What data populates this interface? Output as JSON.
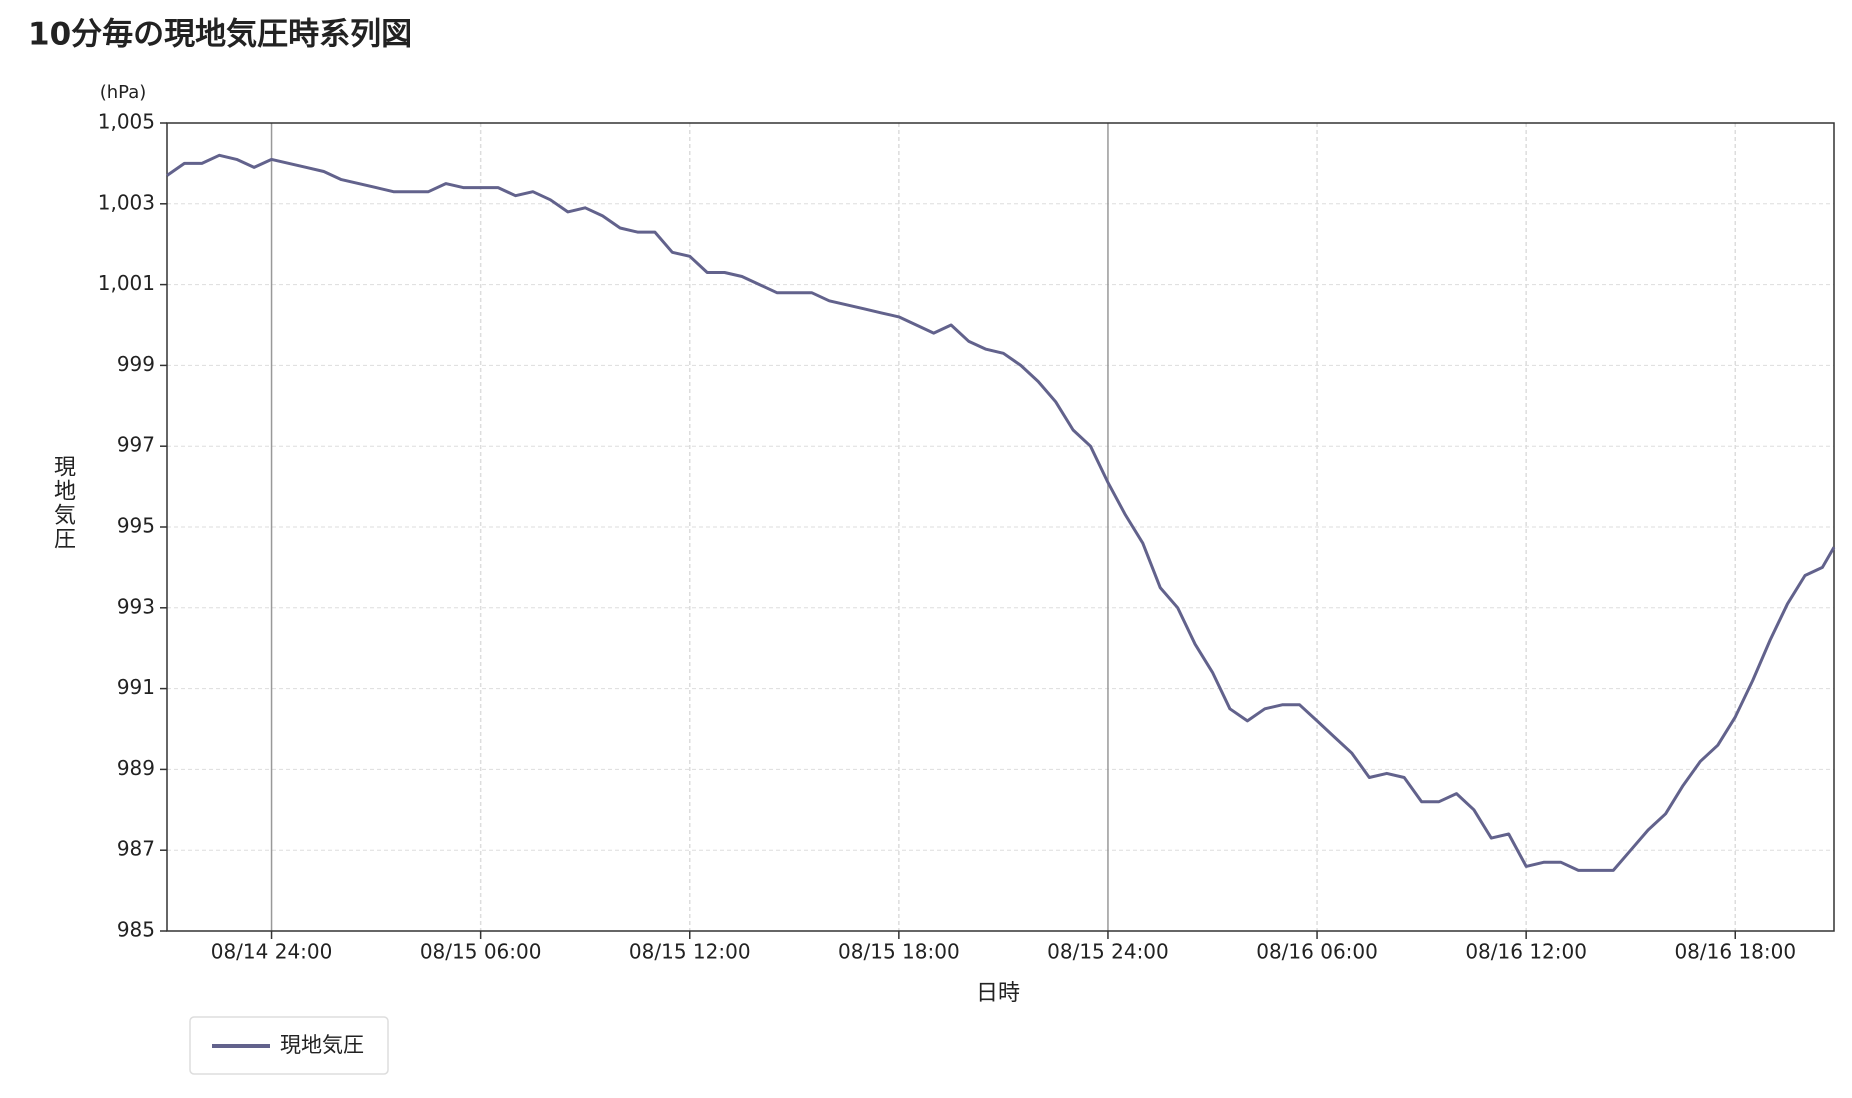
{
  "chart_data": {
    "type": "line",
    "title": "10分毎の現地気圧時系列図",
    "y_unit": "(hPa)",
    "y_label": "現地気圧",
    "x_label": "日時",
    "x": [
      "08/14 21:00",
      "08/14 21:30",
      "08/14 22:00",
      "08/14 22:30",
      "08/14 23:00",
      "08/14 23:30",
      "08/15 00:00",
      "08/15 00:30",
      "08/15 01:00",
      "08/15 01:30",
      "08/15 02:00",
      "08/15 02:30",
      "08/15 03:00",
      "08/15 03:30",
      "08/15 04:00",
      "08/15 04:30",
      "08/15 05:00",
      "08/15 05:30",
      "08/15 06:00",
      "08/15 06:30",
      "08/15 07:00",
      "08/15 07:30",
      "08/15 08:00",
      "08/15 08:30",
      "08/15 09:00",
      "08/15 09:30",
      "08/15 10:00",
      "08/15 10:30",
      "08/15 11:00",
      "08/15 11:30",
      "08/15 12:00",
      "08/15 12:30",
      "08/15 13:00",
      "08/15 13:30",
      "08/15 14:00",
      "08/15 14:30",
      "08/15 15:00",
      "08/15 15:30",
      "08/15 16:00",
      "08/15 16:30",
      "08/15 17:00",
      "08/15 17:30",
      "08/15 18:00",
      "08/15 18:30",
      "08/15 19:00",
      "08/15 19:30",
      "08/15 20:00",
      "08/15 20:30",
      "08/15 21:00",
      "08/15 21:30",
      "08/15 22:00",
      "08/15 22:30",
      "08/15 23:00",
      "08/15 23:30",
      "08/16 00:00",
      "08/16 00:30",
      "08/16 01:00",
      "08/16 01:30",
      "08/16 02:00",
      "08/16 02:30",
      "08/16 03:00",
      "08/16 03:30",
      "08/16 04:00",
      "08/16 04:30",
      "08/16 05:00",
      "08/16 05:30",
      "08/16 06:00",
      "08/16 06:30",
      "08/16 07:00",
      "08/16 07:30",
      "08/16 08:00",
      "08/16 08:30",
      "08/16 09:00",
      "08/16 09:30",
      "08/16 10:00",
      "08/16 10:30",
      "08/16 11:00",
      "08/16 11:30",
      "08/16 12:00",
      "08/16 12:30",
      "08/16 13:00",
      "08/16 13:30",
      "08/16 14:00",
      "08/16 14:30",
      "08/16 15:00",
      "08/16 15:30",
      "08/16 16:00",
      "08/16 16:30",
      "08/16 17:00",
      "08/16 17:30",
      "08/16 18:00",
      "08/16 18:30",
      "08/16 19:00",
      "08/16 19:30",
      "08/16 20:00",
      "08/16 20:30",
      "08/16 20:50"
    ],
    "series": [
      {
        "name": "現地気圧",
        "color": "#62628c",
        "values": [
          1003.7,
          1004.0,
          1004.0,
          1004.2,
          1004.1,
          1003.9,
          1004.1,
          1004.0,
          1003.9,
          1003.8,
          1003.6,
          1003.5,
          1003.4,
          1003.3,
          1003.3,
          1003.3,
          1003.5,
          1003.4,
          1003.4,
          1003.4,
          1003.2,
          1003.3,
          1003.1,
          1002.8,
          1002.9,
          1002.7,
          1002.4,
          1002.3,
          1002.3,
          1001.8,
          1001.7,
          1001.3,
          1001.3,
          1001.2,
          1001.0,
          1000.8,
          1000.8,
          1000.8,
          1000.6,
          1000.5,
          1000.4,
          1000.3,
          1000.2,
          1000.0,
          999.8,
          1000.0,
          999.6,
          999.4,
          999.3,
          999.0,
          998.6,
          998.1,
          997.4,
          997.0,
          996.1,
          995.3,
          994.6,
          993.5,
          993.0,
          992.1,
          991.4,
          990.5,
          990.2,
          990.5,
          990.6,
          990.6,
          990.2,
          989.8,
          989.4,
          988.8,
          988.9,
          988.8,
          988.2,
          988.2,
          988.4,
          988.0,
          987.3,
          987.4,
          986.6,
          986.7,
          986.7,
          986.5,
          986.5,
          986.5,
          987.0,
          987.5,
          987.9,
          988.6,
          989.2,
          989.6,
          990.3,
          991.2,
          992.2,
          993.1,
          993.8,
          994.0,
          994.5
        ]
      }
    ],
    "xlim": [
      "08/14 21:00",
      "08/16 20:50"
    ],
    "xticks": [
      "08/14 24:00",
      "08/15 06:00",
      "08/15 12:00",
      "08/15 18:00",
      "08/15 24:00",
      "08/16 06:00",
      "08/16 12:00",
      "08/16 18:00"
    ],
    "ylim": [
      985,
      1005
    ],
    "yticks": [
      985,
      987,
      989,
      991,
      993,
      995,
      997,
      999,
      {
        "value": 1001,
        "label": "1,001"
      },
      {
        "value": 1003,
        "label": "1,003"
      },
      {
        "value": 1005,
        "label": "1,005"
      }
    ],
    "grid": true,
    "day_lines": true
  }
}
